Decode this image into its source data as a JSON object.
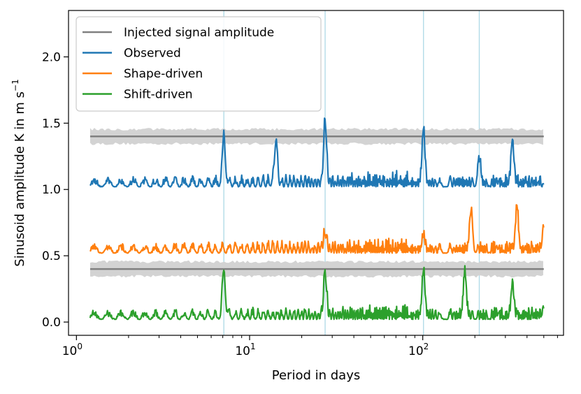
{
  "chart_data": {
    "type": "line",
    "xlabel": "Period in days",
    "ylabel": "Sinusoid amplitude K in m s",
    "ylabel_sup": "−1",
    "xscale": "log",
    "xlim": [
      0.9,
      650
    ],
    "ylim": [
      -0.1,
      2.35
    ],
    "xticks": [
      {
        "value": 1,
        "base": "10",
        "exp": "0"
      },
      {
        "value": 10,
        "base": "10",
        "exp": "1"
      },
      {
        "value": 100,
        "base": "10",
        "exp": "2"
      }
    ],
    "yticks": [
      {
        "value": 0.0,
        "label": "0.0"
      },
      {
        "value": 0.5,
        "label": "0.5"
      },
      {
        "value": 1.0,
        "label": "1.0"
      },
      {
        "value": 1.5,
        "label": "1.5"
      },
      {
        "value": 2.0,
        "label": "2.0"
      }
    ],
    "vlines": [
      7.1,
      27.3,
      101,
      212
    ],
    "legend_position": "top-left",
    "series": [
      {
        "name": "Injected signal amplitude",
        "color": "#808080",
        "kind": "injected",
        "x_range": [
          1.2,
          500
        ],
        "levels": [
          1.4,
          0.4
        ],
        "band_halfwidth": 0.065
      },
      {
        "name": "Observed",
        "color": "#1f77b4",
        "kind": "periodogram",
        "baseline": 1.0,
        "x_range": [
          1.2,
          500
        ],
        "peaks": [
          [
            7.1,
            1.46
          ],
          [
            14.2,
            1.43
          ],
          [
            27.3,
            1.57
          ],
          [
            101,
            1.51
          ],
          [
            212,
            1.29
          ],
          [
            330,
            1.41
          ]
        ]
      },
      {
        "name": "Shape-driven",
        "color": "#ff7f0e",
        "kind": "periodogram",
        "baseline": 0.5,
        "x_range": [
          1.2,
          500
        ],
        "peaks": [
          [
            27.3,
            0.72
          ],
          [
            101,
            0.71
          ],
          [
            190,
            0.9
          ],
          [
            350,
            0.92
          ],
          [
            500,
            0.79
          ]
        ]
      },
      {
        "name": "Shift-driven",
        "color": "#2ca02c",
        "kind": "periodogram",
        "baseline": 0.0,
        "x_range": [
          1.2,
          500
        ],
        "peaks": [
          [
            7.1,
            0.45
          ],
          [
            27.3,
            0.43
          ],
          [
            101,
            0.45
          ],
          [
            175,
            0.44
          ],
          [
            330,
            0.33
          ],
          [
            500,
            0.17
          ]
        ]
      }
    ]
  },
  "colors": {
    "vline": "#add8e6",
    "band": "#d3d3d3",
    "axes": "#000000"
  }
}
